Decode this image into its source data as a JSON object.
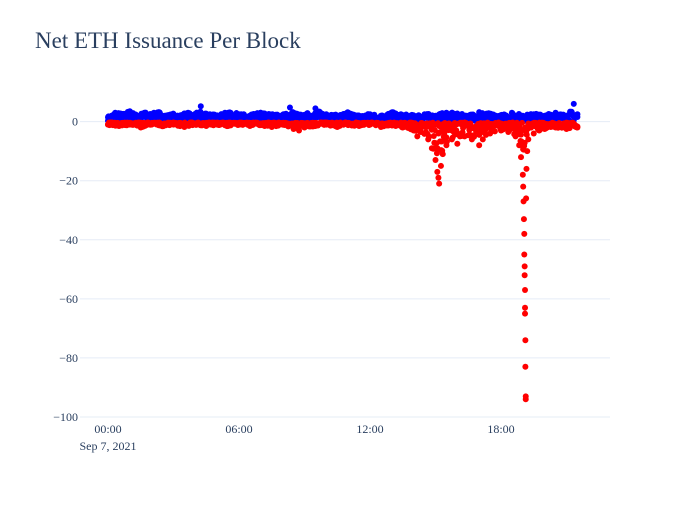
{
  "chart_data": {
    "type": "scatter",
    "title": "Net ETH Issuance Per Block",
    "xlabel": "",
    "ylabel": "",
    "x_range": [
      "2021-09-07 00:00",
      "2021-09-07 21:30"
    ],
    "y_range": [
      -100,
      8
    ],
    "y_ticks": [
      0,
      -20,
      -40,
      -60,
      -80,
      -100
    ],
    "y_tick_labels": [
      "0",
      "−20",
      "−40",
      "−60",
      "−80",
      "−100"
    ],
    "x_ticks": [
      "2021-09-07 00:00",
      "2021-09-07 06:00",
      "2021-09-07 12:00",
      "2021-09-07 18:00"
    ],
    "x_tick_labels": [
      "00:00",
      "06:00",
      "12:00",
      "18:00"
    ],
    "x_date_label": "Sep 7, 2021",
    "grid": true,
    "legend": "none",
    "series": [
      {
        "color": "#0000ff",
        "points": [
          {
            "x": "2021-09-07 00:00",
            "y": 1.5
          },
          {
            "x": "2021-09-07 00:20",
            "y": 3.0
          },
          {
            "x": "2021-09-07 00:40",
            "y": 2.5
          },
          {
            "x": "2021-09-07 01:00",
            "y": 3.5
          },
          {
            "x": "2021-09-07 01:20",
            "y": 2.0
          },
          {
            "x": "2021-09-07 01:40",
            "y": 3.0
          },
          {
            "x": "2021-09-07 02:00",
            "y": 2.5
          },
          {
            "x": "2021-09-07 02:20",
            "y": 3.2
          },
          {
            "x": "2021-09-07 02:40",
            "y": 2.0
          },
          {
            "x": "2021-09-07 03:00",
            "y": 2.5
          },
          {
            "x": "2021-09-07 03:20",
            "y": 2.0
          },
          {
            "x": "2021-09-07 03:40",
            "y": 3.0
          },
          {
            "x": "2021-09-07 04:00",
            "y": 2.2
          },
          {
            "x": "2021-09-07 04:15",
            "y": 5.2
          },
          {
            "x": "2021-09-07 04:40",
            "y": 2.5
          },
          {
            "x": "2021-09-07 05:00",
            "y": 2.0
          },
          {
            "x": "2021-09-07 05:30",
            "y": 3.0
          },
          {
            "x": "2021-09-07 06:00",
            "y": 2.5
          },
          {
            "x": "2021-09-07 06:30",
            "y": 2.0
          },
          {
            "x": "2021-09-07 07:00",
            "y": 3.0
          },
          {
            "x": "2021-09-07 07:30",
            "y": 2.4
          },
          {
            "x": "2021-09-07 08:00",
            "y": 2.0
          },
          {
            "x": "2021-09-07 08:20",
            "y": 4.8
          },
          {
            "x": "2021-09-07 08:40",
            "y": 2.5
          },
          {
            "x": "2021-09-07 09:00",
            "y": 2.0
          },
          {
            "x": "2021-09-07 09:30",
            "y": 4.5
          },
          {
            "x": "2021-09-07 10:00",
            "y": 2.5
          },
          {
            "x": "2021-09-07 10:30",
            "y": 2.0
          },
          {
            "x": "2021-09-07 11:00",
            "y": 3.0
          },
          {
            "x": "2021-09-07 11:30",
            "y": 2.0
          },
          {
            "x": "2021-09-07 12:00",
            "y": 2.5
          },
          {
            "x": "2021-09-07 12:30",
            "y": 2.0
          },
          {
            "x": "2021-09-07 13:00",
            "y": 3.0
          },
          {
            "x": "2021-09-07 13:30",
            "y": 2.2
          },
          {
            "x": "2021-09-07 14:00",
            "y": 2.0
          },
          {
            "x": "2021-09-07 14:30",
            "y": 2.5
          },
          {
            "x": "2021-09-07 15:00",
            "y": 2.0
          },
          {
            "x": "2021-09-07 15:30",
            "y": 3.0
          },
          {
            "x": "2021-09-07 16:00",
            "y": 2.5
          },
          {
            "x": "2021-09-07 16:30",
            "y": 2.0
          },
          {
            "x": "2021-09-07 17:00",
            "y": 3.2
          },
          {
            "x": "2021-09-07 17:30",
            "y": 2.5
          },
          {
            "x": "2021-09-07 18:00",
            "y": 2.0
          },
          {
            "x": "2021-09-07 18:30",
            "y": 3.0
          },
          {
            "x": "2021-09-07 19:00",
            "y": 2.0
          },
          {
            "x": "2021-09-07 19:30",
            "y": 2.5
          },
          {
            "x": "2021-09-07 20:00",
            "y": 2.0
          },
          {
            "x": "2021-09-07 20:30",
            "y": 3.0
          },
          {
            "x": "2021-09-07 21:00",
            "y": 2.0
          },
          {
            "x": "2021-09-07 21:20",
            "y": 6.0
          },
          {
            "x": "2021-09-07 21:30",
            "y": 2.5
          }
        ]
      },
      {
        "color": "#ff0000",
        "points": [
          {
            "x": "2021-09-07 00:00",
            "y": -1.0
          },
          {
            "x": "2021-09-07 00:30",
            "y": -1.5
          },
          {
            "x": "2021-09-07 01:00",
            "y": -1.0
          },
          {
            "x": "2021-09-07 01:30",
            "y": -2.0
          },
          {
            "x": "2021-09-07 02:00",
            "y": -1.0
          },
          {
            "x": "2021-09-07 02:30",
            "y": -1.5
          },
          {
            "x": "2021-09-07 03:00",
            "y": -1.0
          },
          {
            "x": "2021-09-07 03:30",
            "y": -1.8
          },
          {
            "x": "2021-09-07 04:00",
            "y": -1.0
          },
          {
            "x": "2021-09-07 04:30",
            "y": -1.5
          },
          {
            "x": "2021-09-07 05:00",
            "y": -1.0
          },
          {
            "x": "2021-09-07 05:30",
            "y": -1.5
          },
          {
            "x": "2021-09-07 06:00",
            "y": -1.0
          },
          {
            "x": "2021-09-07 06:30",
            "y": -1.5
          },
          {
            "x": "2021-09-07 07:00",
            "y": -1.2
          },
          {
            "x": "2021-09-07 07:30",
            "y": -1.8
          },
          {
            "x": "2021-09-07 08:00",
            "y": -1.0
          },
          {
            "x": "2021-09-07 08:30",
            "y": -2.5
          },
          {
            "x": "2021-09-07 08:45",
            "y": -3.0
          },
          {
            "x": "2021-09-07 09:00",
            "y": -2.0
          },
          {
            "x": "2021-09-07 09:30",
            "y": -1.5
          },
          {
            "x": "2021-09-07 10:00",
            "y": -1.0
          },
          {
            "x": "2021-09-07 10:30",
            "y": -1.8
          },
          {
            "x": "2021-09-07 11:00",
            "y": -1.2
          },
          {
            "x": "2021-09-07 11:30",
            "y": -1.5
          },
          {
            "x": "2021-09-07 12:00",
            "y": -1.0
          },
          {
            "x": "2021-09-07 12:30",
            "y": -1.8
          },
          {
            "x": "2021-09-07 13:00",
            "y": -1.2
          },
          {
            "x": "2021-09-07 13:30",
            "y": -2.0
          },
          {
            "x": "2021-09-07 14:00",
            "y": -3.0
          },
          {
            "x": "2021-09-07 14:10",
            "y": -5.0
          },
          {
            "x": "2021-09-07 14:20",
            "y": -3.5
          },
          {
            "x": "2021-09-07 14:40",
            "y": -6.0
          },
          {
            "x": "2021-09-07 14:50",
            "y": -9.0
          },
          {
            "x": "2021-09-07 15:00",
            "y": -13.0
          },
          {
            "x": "2021-09-07 15:05",
            "y": -17.0
          },
          {
            "x": "2021-09-07 15:08",
            "y": -19.0
          },
          {
            "x": "2021-09-07 15:10",
            "y": -21.0
          },
          {
            "x": "2021-09-07 15:15",
            "y": -15.0
          },
          {
            "x": "2021-09-07 15:20",
            "y": -11.0
          },
          {
            "x": "2021-09-07 15:30",
            "y": -8.0
          },
          {
            "x": "2021-09-07 15:45",
            "y": -6.0
          },
          {
            "x": "2021-09-07 16:00",
            "y": -7.5
          },
          {
            "x": "2021-09-07 16:20",
            "y": -5.0
          },
          {
            "x": "2021-09-07 16:40",
            "y": -6.0
          },
          {
            "x": "2021-09-07 17:00",
            "y": -8.0
          },
          {
            "x": "2021-09-07 17:10",
            "y": -6.0
          },
          {
            "x": "2021-09-07 17:30",
            "y": -4.0
          },
          {
            "x": "2021-09-07 18:00",
            "y": -3.0
          },
          {
            "x": "2021-09-07 18:20",
            "y": -3.5
          },
          {
            "x": "2021-09-07 18:40",
            "y": -5.0
          },
          {
            "x": "2021-09-07 18:50",
            "y": -8.0
          },
          {
            "x": "2021-09-07 18:55",
            "y": -12.0
          },
          {
            "x": "2021-09-07 19:00",
            "y": -18.0
          },
          {
            "x": "2021-09-07 19:01",
            "y": -22.0
          },
          {
            "x": "2021-09-07 19:02",
            "y": -27.0
          },
          {
            "x": "2021-09-07 19:03",
            "y": -33.0
          },
          {
            "x": "2021-09-07 19:04",
            "y": -38.0
          },
          {
            "x": "2021-09-07 19:04",
            "y": -45.0
          },
          {
            "x": "2021-09-07 19:05",
            "y": -49.0
          },
          {
            "x": "2021-09-07 19:05",
            "y": -52.0
          },
          {
            "x": "2021-09-07 19:06",
            "y": -57.0
          },
          {
            "x": "2021-09-07 19:06",
            "y": -63.0
          },
          {
            "x": "2021-09-07 19:06",
            "y": -65.0
          },
          {
            "x": "2021-09-07 19:07",
            "y": -74.0
          },
          {
            "x": "2021-09-07 19:07",
            "y": -83.0
          },
          {
            "x": "2021-09-07 19:08",
            "y": -93.0
          },
          {
            "x": "2021-09-07 19:08",
            "y": -94.0
          },
          {
            "x": "2021-09-07 19:09",
            "y": -26.0
          },
          {
            "x": "2021-09-07 19:10",
            "y": -16.0
          },
          {
            "x": "2021-09-07 19:12",
            "y": -10.0
          },
          {
            "x": "2021-09-07 19:15",
            "y": -6.0
          },
          {
            "x": "2021-09-07 19:30",
            "y": -4.0
          },
          {
            "x": "2021-09-07 19:45",
            "y": -3.0
          },
          {
            "x": "2021-09-07 20:00",
            "y": -2.5
          },
          {
            "x": "2021-09-07 20:30",
            "y": -2.0
          },
          {
            "x": "2021-09-07 21:00",
            "y": -2.5
          },
          {
            "x": "2021-09-07 21:30",
            "y": -2.0
          }
        ]
      }
    ]
  }
}
